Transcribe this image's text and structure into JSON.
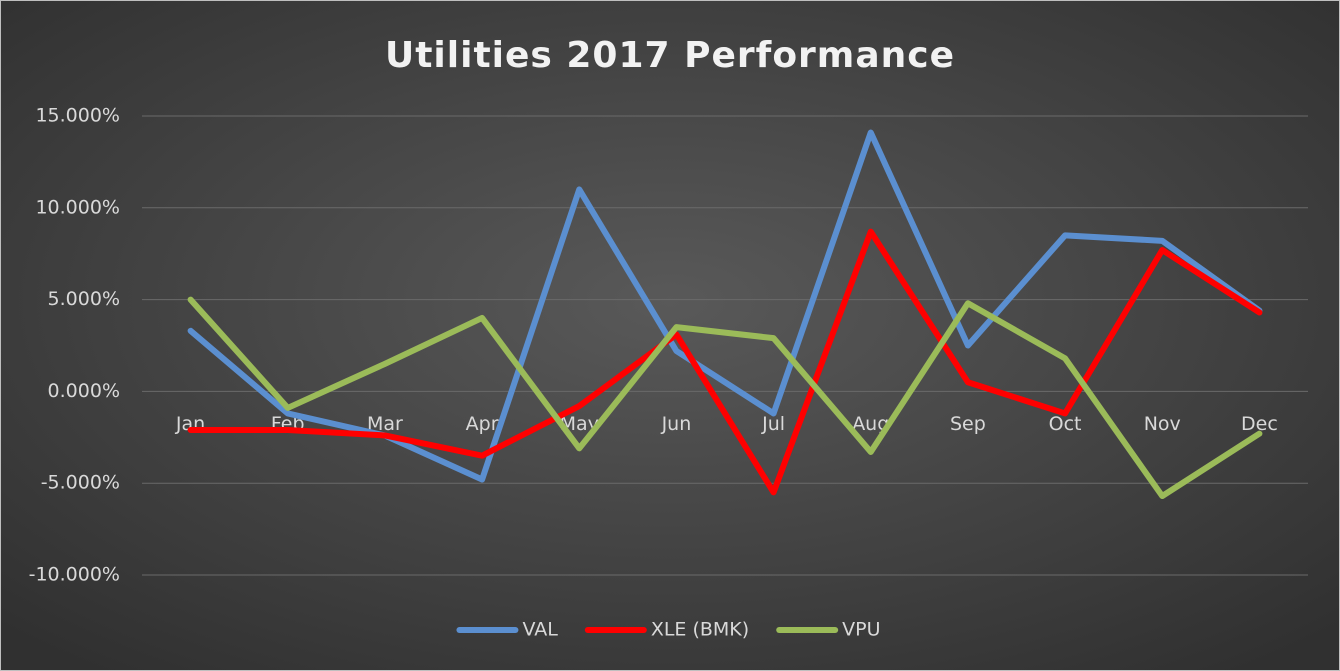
{
  "chart_data": {
    "type": "line",
    "title": "Utilities 2017 Performance",
    "categories": [
      "Jan",
      "Feb",
      "Mar",
      "Apr",
      "May",
      "Jun",
      "Jul",
      "Aug",
      "Sep",
      "Oct",
      "Nov",
      "Dec"
    ],
    "series": [
      {
        "name": "VAL",
        "color": "#5b8fd0",
        "values": [
          3.3,
          -1.2,
          -2.4,
          -4.8,
          11.0,
          2.2,
          -1.2,
          14.1,
          2.5,
          8.5,
          8.2,
          4.4
        ]
      },
      {
        "name": "XLE (BMK)",
        "color": "#ff0000",
        "values": [
          -2.1,
          -2.1,
          -2.4,
          -3.5,
          -0.8,
          3.1,
          -5.5,
          8.7,
          0.5,
          -1.2,
          7.7,
          4.3
        ]
      },
      {
        "name": "VPU",
        "color": "#9bbb59",
        "values": [
          5.0,
          -0.9,
          1.5,
          4.0,
          -3.1,
          3.5,
          2.9,
          -3.3,
          4.8,
          1.8,
          -5.7,
          -2.3
        ]
      }
    ],
    "ylim": [
      -10,
      15
    ],
    "yticks": [
      {
        "value": -10,
        "label": "-10.000%"
      },
      {
        "value": -5,
        "label": "-5.000%"
      },
      {
        "value": 0,
        "label": "0.000%"
      },
      {
        "value": 5,
        "label": "5.000%"
      },
      {
        "value": 10,
        "label": "10.000%"
      },
      {
        "value": 15,
        "label": "15.000%"
      }
    ],
    "grid": true,
    "legend": "bottom"
  }
}
